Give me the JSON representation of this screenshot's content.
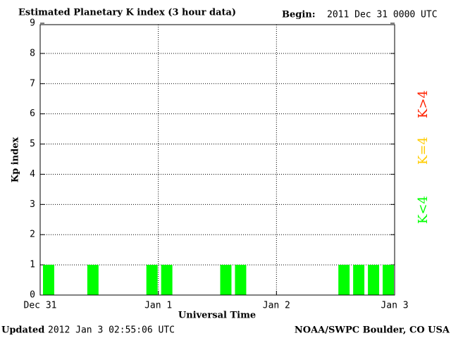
{
  "chart_data": {
    "type": "bar",
    "title": "Estimated Planetary K index (3 hour data)",
    "begin_label": "Begin:",
    "begin": "2011 Dec 31 0000 UTC",
    "ylabel": "Kp index",
    "xlabel": "Universal Time",
    "updated_label": "Updated",
    "updated": "2012 Jan  3 02:55:06 UTC",
    "source": "NOAA/SWPC Boulder, CO USA",
    "x": [
      0,
      3,
      6,
      9,
      12,
      15,
      18,
      21,
      24,
      27,
      30,
      33,
      36,
      39,
      42,
      45,
      48,
      51,
      54,
      57,
      60,
      63,
      66,
      69
    ],
    "series": [
      {
        "name": "K<4",
        "color": "#00ff00",
        "values": [
          1,
          0,
          0,
          1,
          0,
          0,
          0,
          1,
          1,
          0,
          0,
          0,
          1,
          1,
          0,
          0,
          0,
          0,
          0,
          0,
          1,
          1,
          1,
          1
        ]
      },
      {
        "name": "K=4",
        "color": "#ffcc00",
        "values": [
          null,
          null,
          null,
          null,
          null,
          null,
          null,
          null,
          null,
          null,
          null,
          null,
          null,
          null,
          null,
          null,
          null,
          null,
          null,
          null,
          null,
          null,
          null,
          null
        ]
      },
      {
        "name": "K>4",
        "color": "#ff2200",
        "values": [
          null,
          null,
          null,
          null,
          null,
          null,
          null,
          null,
          null,
          null,
          null,
          null,
          null,
          null,
          null,
          null,
          null,
          null,
          null,
          null,
          null,
          null,
          null,
          null
        ]
      }
    ],
    "xlim": [
      0,
      72
    ],
    "xticks": [
      {
        "value": 0,
        "label": "Dec 31"
      },
      {
        "value": 24,
        "label": "Jan 1"
      },
      {
        "value": 48,
        "label": "Jan 2"
      },
      {
        "value": 72,
        "label": "Jan 3"
      }
    ],
    "ylim": [
      0,
      9
    ],
    "yticks": [
      0,
      1,
      2,
      3,
      4,
      5,
      6,
      7,
      8,
      9
    ],
    "grid": true
  }
}
